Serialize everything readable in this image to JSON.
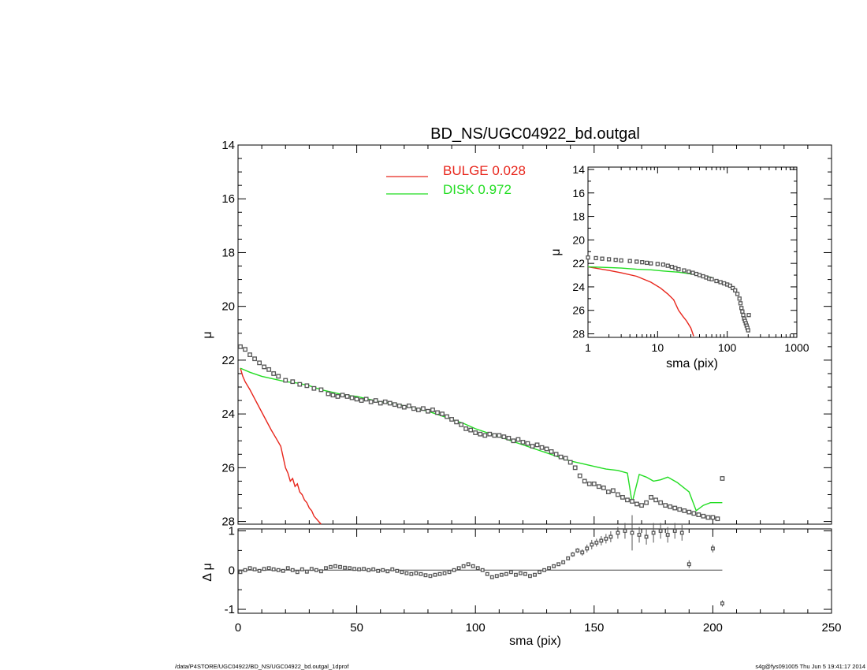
{
  "footer": {
    "path": "/data/P4STORE/UGC04922/BD_NS/UGC04922_bd.outgal_1dprof",
    "stamp": "s4g@fys091005  Thu Jun  5 19:41:17 2014"
  },
  "colors": {
    "bulge": "#e8261c",
    "disk": "#22dd22",
    "points": "#555555",
    "axis": "#000000"
  },
  "chart_data": [
    {
      "id": "main",
      "type": "scatter",
      "title": "BD_NS/UGC04922_bd.outgal",
      "xlabel": "",
      "ylabel": "μ",
      "xlim": [
        0,
        250
      ],
      "ylim": [
        28.1,
        14.0
      ],
      "y_inverted": true,
      "xticks": [
        0,
        50,
        100,
        150,
        200,
        250
      ],
      "yticks": [
        14,
        16,
        18,
        20,
        22,
        24,
        26,
        28
      ],
      "legend": {
        "placement": "top-center",
        "entries": [
          {
            "label": "BULGE  0.028",
            "series": "bulge"
          },
          {
            "label": "DISK  0.972",
            "series": "disk"
          }
        ]
      },
      "series": [
        {
          "key": "bulge",
          "style": "line",
          "x": [
            1,
            2,
            3,
            5,
            8,
            11,
            14,
            16,
            18,
            19,
            20,
            21,
            22,
            23,
            24,
            25,
            26,
            27,
            28,
            29,
            30,
            31,
            32,
            33,
            34,
            35
          ],
          "y": [
            22.3,
            22.6,
            22.8,
            23.1,
            23.6,
            24.1,
            24.6,
            24.9,
            25.2,
            25.6,
            26.0,
            26.2,
            26.5,
            26.4,
            26.7,
            26.6,
            26.9,
            27.0,
            27.2,
            27.3,
            27.5,
            27.6,
            27.8,
            27.9,
            28.0,
            28.1
          ]
        },
        {
          "key": "disk",
          "style": "line",
          "x": [
            1,
            5,
            10,
            15,
            20,
            25,
            30,
            35,
            40,
            45,
            50,
            55,
            60,
            65,
            70,
            75,
            80,
            85,
            90,
            95,
            100,
            105,
            110,
            115,
            120,
            125,
            130,
            135,
            140,
            145,
            150,
            155,
            160,
            164,
            166,
            169,
            172,
            175,
            178,
            181,
            185,
            190,
            193,
            196,
            199,
            202,
            204
          ],
          "y": [
            22.3,
            22.45,
            22.6,
            22.7,
            22.8,
            22.85,
            22.95,
            23.1,
            23.2,
            23.3,
            23.35,
            23.45,
            23.55,
            23.6,
            23.7,
            23.8,
            23.9,
            24.05,
            24.2,
            24.35,
            24.55,
            24.7,
            24.85,
            25.0,
            25.15,
            25.3,
            25.45,
            25.6,
            25.75,
            25.85,
            25.95,
            26.05,
            26.1,
            26.2,
            27.3,
            26.25,
            26.35,
            26.5,
            26.45,
            26.35,
            26.55,
            26.9,
            27.6,
            27.4,
            27.3,
            27.3,
            27.3
          ]
        },
        {
          "key": "data",
          "style": "square-markers",
          "x": [
            1,
            3,
            5,
            7,
            9,
            11,
            13,
            15,
            17,
            20,
            23,
            26,
            29,
            32,
            35,
            38,
            40,
            42,
            44,
            46,
            48,
            50,
            52,
            54,
            56,
            58,
            60,
            62,
            64,
            66,
            68,
            70,
            72,
            74,
            76,
            78,
            80,
            82,
            84,
            86,
            88,
            90,
            92,
            94,
            96,
            98,
            100,
            102,
            104,
            106,
            108,
            110,
            112,
            114,
            116,
            118,
            120,
            122,
            124,
            126,
            128,
            130,
            132,
            134,
            136,
            138,
            140,
            142,
            144,
            146,
            148,
            150,
            152,
            154,
            156,
            158,
            160,
            162,
            164,
            166,
            168,
            170,
            172,
            174,
            176,
            178,
            180,
            182,
            184,
            186,
            188,
            190,
            192,
            194,
            196,
            198,
            200,
            202,
            204
          ],
          "y": [
            21.5,
            21.6,
            21.8,
            21.95,
            22.1,
            22.25,
            22.35,
            22.5,
            22.6,
            22.75,
            22.8,
            22.9,
            22.95,
            23.05,
            23.1,
            23.25,
            23.3,
            23.35,
            23.3,
            23.35,
            23.4,
            23.45,
            23.5,
            23.45,
            23.55,
            23.5,
            23.6,
            23.55,
            23.6,
            23.65,
            23.7,
            23.75,
            23.7,
            23.8,
            23.85,
            23.8,
            23.9,
            23.85,
            23.95,
            24.0,
            24.1,
            24.2,
            24.3,
            24.4,
            24.55,
            24.6,
            24.7,
            24.75,
            24.8,
            24.75,
            24.8,
            24.8,
            24.85,
            24.9,
            25.0,
            24.95,
            25.05,
            25.1,
            25.2,
            25.15,
            25.25,
            25.3,
            25.4,
            25.5,
            25.6,
            25.65,
            25.8,
            26.0,
            26.3,
            26.5,
            26.6,
            26.6,
            26.7,
            26.75,
            26.9,
            26.85,
            27.0,
            27.1,
            27.2,
            27.25,
            27.35,
            27.4,
            27.3,
            27.1,
            27.2,
            27.3,
            27.4,
            27.45,
            27.5,
            27.55,
            27.6,
            27.65,
            27.7,
            27.75,
            27.8,
            27.85,
            27.85,
            27.9,
            26.4
          ]
        }
      ]
    },
    {
      "id": "residual",
      "type": "scatter",
      "xlabel": "sma (pix)",
      "ylabel": "Δ μ",
      "xlim": [
        0,
        250
      ],
      "ylim": [
        -1.1,
        1.05
      ],
      "xticks": [
        0,
        50,
        100,
        150,
        200,
        250
      ],
      "yticks": [
        -1,
        0,
        1
      ],
      "series": [
        {
          "key": "residuals",
          "style": "square-markers",
          "x": [
            1,
            3,
            5,
            7,
            9,
            11,
            13,
            15,
            17,
            19,
            21,
            23,
            25,
            27,
            29,
            31,
            33,
            35,
            37,
            39,
            41,
            43,
            45,
            47,
            49,
            51,
            53,
            55,
            57,
            59,
            61,
            63,
            65,
            67,
            69,
            71,
            73,
            75,
            77,
            79,
            81,
            83,
            85,
            87,
            89,
            91,
            93,
            95,
            97,
            99,
            101,
            103,
            105,
            107,
            109,
            111,
            113,
            115,
            117,
            119,
            121,
            123,
            125,
            127,
            129,
            131,
            133,
            135,
            137,
            139,
            141,
            143,
            145,
            147,
            149,
            151,
            153,
            155,
            157,
            160,
            163,
            166,
            169,
            172,
            175,
            178,
            181,
            184,
            187,
            190,
            200,
            204
          ],
          "y": [
            -0.05,
            0.0,
            0.05,
            0.02,
            -0.02,
            0.03,
            0.05,
            0.02,
            0.0,
            -0.02,
            0.05,
            0.0,
            -0.05,
            0.02,
            -0.04,
            0.03,
            0.0,
            -0.03,
            0.05,
            0.08,
            0.1,
            0.08,
            0.06,
            0.05,
            0.03,
            0.02,
            0.03,
            0.0,
            0.02,
            -0.02,
            0.0,
            -0.03,
            0.02,
            -0.02,
            -0.05,
            -0.08,
            -0.1,
            -0.08,
            -0.1,
            -0.13,
            -0.15,
            -0.12,
            -0.1,
            -0.08,
            -0.05,
            0.0,
            0.05,
            0.1,
            0.15,
            0.1,
            0.05,
            0.0,
            -0.1,
            -0.18,
            -0.15,
            -0.12,
            -0.1,
            -0.05,
            -0.12,
            -0.08,
            -0.1,
            -0.15,
            -0.12,
            -0.05,
            0.0,
            0.05,
            0.1,
            0.15,
            0.2,
            0.3,
            0.4,
            0.5,
            0.45,
            0.55,
            0.65,
            0.7,
            0.75,
            0.8,
            0.85,
            0.95,
            1.0,
            0.95,
            0.9,
            0.85,
            0.95,
            1.0,
            0.9,
            1.0,
            0.95,
            0.15,
            0.55,
            -0.85
          ],
          "yerr": [
            0.02,
            0.02,
            0.02,
            0.02,
            0.02,
            0.02,
            0.02,
            0.02,
            0.02,
            0.02,
            0.02,
            0.02,
            0.02,
            0.02,
            0.02,
            0.02,
            0.02,
            0.02,
            0.02,
            0.02,
            0.02,
            0.02,
            0.02,
            0.02,
            0.02,
            0.02,
            0.02,
            0.02,
            0.02,
            0.02,
            0.02,
            0.02,
            0.02,
            0.02,
            0.02,
            0.02,
            0.02,
            0.02,
            0.02,
            0.02,
            0.02,
            0.02,
            0.02,
            0.02,
            0.02,
            0.02,
            0.02,
            0.02,
            0.02,
            0.02,
            0.02,
            0.02,
            0.02,
            0.02,
            0.02,
            0.02,
            0.02,
            0.02,
            0.02,
            0.02,
            0.02,
            0.02,
            0.02,
            0.02,
            0.02,
            0.02,
            0.03,
            0.03,
            0.03,
            0.04,
            0.06,
            0.06,
            0.08,
            0.1,
            0.12,
            0.1,
            0.12,
            0.12,
            0.14,
            0.15,
            0.2,
            0.45,
            0.2,
            0.2,
            0.25,
            0.2,
            0.2,
            0.2,
            0.2,
            0.1,
            0.1,
            0.08
          ]
        }
      ]
    },
    {
      "id": "inset",
      "type": "scatter",
      "xlabel": "sma (pix)",
      "ylabel": "μ",
      "xscale": "log",
      "xlim": [
        1,
        1000
      ],
      "ylim": [
        28.3,
        13.8
      ],
      "y_inverted": true,
      "xticks": [
        1,
        10,
        100,
        1000
      ],
      "xtick_labels": [
        "1",
        "10",
        "100",
        "1000"
      ],
      "yticks": [
        14,
        16,
        18,
        20,
        22,
        24,
        26,
        28
      ],
      "series": [
        {
          "key": "bulge",
          "style": "line",
          "x": [
            1,
            2,
            3,
            5,
            8,
            11,
            14,
            17,
            20,
            23,
            26,
            30,
            33
          ],
          "y": [
            22.3,
            22.6,
            22.8,
            23.1,
            23.6,
            24.1,
            24.6,
            25.1,
            26.0,
            26.5,
            26.9,
            27.5,
            28.2
          ]
        },
        {
          "key": "disk",
          "style": "line",
          "x": [
            1,
            2,
            3,
            5,
            8,
            12,
            20,
            30,
            45,
            60
          ],
          "y": [
            22.3,
            22.35,
            22.4,
            22.5,
            22.55,
            22.65,
            22.75,
            22.9,
            23.05,
            23.2
          ]
        },
        {
          "key": "data",
          "style": "square-markers",
          "x": [
            1,
            1.3,
            1.6,
            2,
            2.5,
            3,
            4,
            5,
            6,
            7,
            8,
            10,
            12,
            14,
            16,
            18,
            20,
            24,
            28,
            32,
            36,
            40,
            45,
            50,
            55,
            60,
            70,
            80,
            90,
            100,
            110,
            120,
            130,
            140,
            150,
            155,
            160,
            165,
            170,
            175,
            180,
            185,
            190,
            195,
            200,
            204
          ],
          "y": [
            21.5,
            21.55,
            21.6,
            21.65,
            21.7,
            21.75,
            21.8,
            21.85,
            21.9,
            21.95,
            22.0,
            22.05,
            22.1,
            22.2,
            22.3,
            22.4,
            22.5,
            22.6,
            22.7,
            22.8,
            22.9,
            23.0,
            23.1,
            23.2,
            23.3,
            23.35,
            23.5,
            23.6,
            23.7,
            23.8,
            23.9,
            24.1,
            24.3,
            24.6,
            25.0,
            25.4,
            25.8,
            26.1,
            26.4,
            26.7,
            26.9,
            27.1,
            27.3,
            27.5,
            27.7,
            26.4
          ]
        }
      ]
    }
  ]
}
